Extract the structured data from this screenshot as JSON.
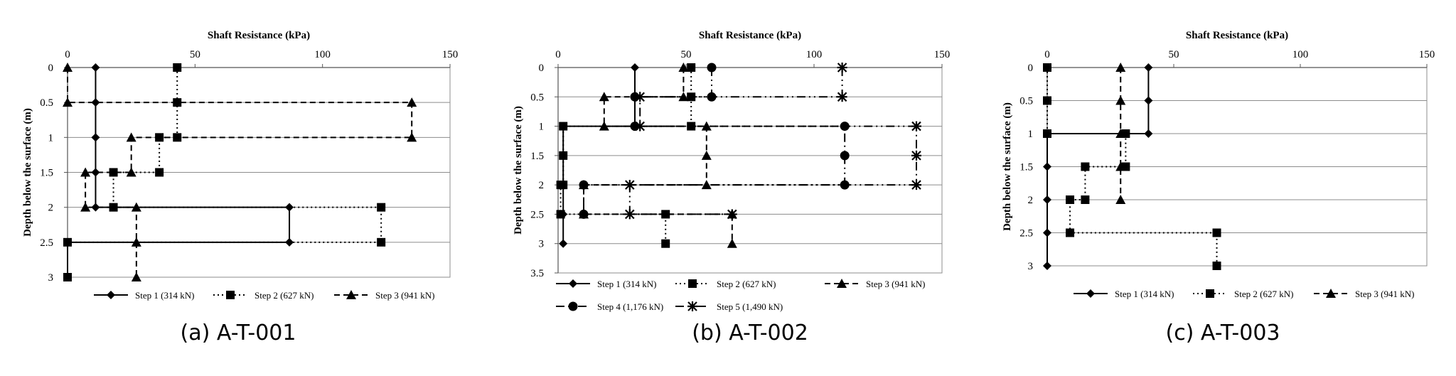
{
  "chart_data": [
    {
      "type": "line",
      "id": "a",
      "caption": "(a) A-T-001",
      "title": "",
      "xlabel": "Shaft Resistance (kPa)",
      "ylabel": "Depth below the surface (m)",
      "xlim": [
        0,
        150
      ],
      "ylim": [
        0,
        3
      ],
      "xticks": [
        0,
        50,
        100,
        150
      ],
      "yticks": [
        0,
        0.5,
        1,
        1.5,
        2,
        2.5,
        3
      ],
      "xtick_labels": [
        "0",
        "50",
        "100",
        "150"
      ],
      "ytick_labels": [
        "0",
        "0.5",
        "1",
        "1.5",
        "2",
        "2.5",
        "3"
      ],
      "legend_position": "bottom",
      "series": [
        {
          "name": "Step 1 (314 kN)",
          "marker": "diamond",
          "dash": "solid",
          "values": [
            [
              11,
              0
            ],
            [
              11,
              0.5
            ],
            [
              11,
              1
            ],
            [
              11,
              1.5
            ],
            [
              11,
              2
            ],
            [
              87,
              2
            ],
            [
              87,
              2.5
            ],
            [
              0,
              2.5
            ],
            [
              0,
              3
            ]
          ]
        },
        {
          "name": "Step 2 (627 kN)",
          "marker": "square",
          "dash": "dot",
          "values": [
            [
              43,
              0
            ],
            [
              43,
              0.5
            ],
            [
              43,
              1
            ],
            [
              36,
              1
            ],
            [
              36,
              1.5
            ],
            [
              18,
              1.5
            ],
            [
              18,
              2
            ],
            [
              123,
              2
            ],
            [
              123,
              2.5
            ],
            [
              0,
              2.5
            ],
            [
              0,
              3
            ]
          ]
        },
        {
          "name": "Step 3 (941 kN)",
          "marker": "triangle",
          "dash": "dash",
          "values": [
            [
              0,
              0
            ],
            [
              0,
              0.5
            ],
            [
              135,
              0.5
            ],
            [
              135,
              1
            ],
            [
              25,
              1
            ],
            [
              25,
              1.5
            ],
            [
              7,
              1.5
            ],
            [
              7,
              2
            ],
            [
              27,
              2
            ],
            [
              27,
              2.5
            ],
            [
              27,
              3
            ]
          ]
        }
      ]
    },
    {
      "type": "line",
      "id": "b",
      "caption": "(b) A-T-002",
      "title": "",
      "xlabel": "Shaft Resistance (kPa)",
      "ylabel": "Depth below the surface (m)",
      "xlim": [
        0,
        150
      ],
      "ylim": [
        0,
        3.5
      ],
      "xticks": [
        0,
        50,
        100,
        150
      ],
      "yticks": [
        0,
        0.5,
        1,
        1.5,
        2,
        2.5,
        3,
        3.5
      ],
      "xtick_labels": [
        "0",
        "50",
        "100",
        "150"
      ],
      "ytick_labels": [
        "0",
        "0.5",
        "1",
        "1.5",
        "2",
        "2.5",
        "3",
        "3.5"
      ],
      "legend_position": "bottom",
      "series": [
        {
          "name": "Step 1 (314 kN)",
          "marker": "diamond",
          "dash": "solid",
          "values": [
            [
              30,
              0
            ],
            [
              30,
              0.5
            ],
            [
              30,
              1
            ],
            [
              2,
              1
            ],
            [
              2,
              1.5
            ],
            [
              2,
              2
            ],
            [
              2,
              2.5
            ],
            [
              2,
              3
            ]
          ]
        },
        {
          "name": "Step 2 (627 kN)",
          "marker": "square",
          "dash": "dot",
          "values": [
            [
              52,
              0
            ],
            [
              52,
              0.5
            ],
            [
              52,
              1
            ],
            [
              2,
              1
            ],
            [
              2,
              1.5
            ],
            [
              2,
              2
            ],
            [
              1,
              2
            ],
            [
              1,
              2.5
            ],
            [
              42,
              2.5
            ],
            [
              42,
              3
            ]
          ]
        },
        {
          "name": "Step 3 (941 kN)",
          "marker": "triangle",
          "dash": "dash",
          "values": [
            [
              49,
              0
            ],
            [
              49,
              0.5
            ],
            [
              18,
              0.5
            ],
            [
              18,
              1
            ],
            [
              58,
              1
            ],
            [
              58,
              1.5
            ],
            [
              58,
              2
            ],
            [
              10,
              2
            ],
            [
              10,
              2.5
            ],
            [
              68,
              2.5
            ],
            [
              68,
              3
            ]
          ]
        },
        {
          "name": "Step 4 (1,176 kN)",
          "marker": "circle",
          "dash": "dashdotdot",
          "values": [
            [
              60,
              0
            ],
            [
              60,
              0.5
            ],
            [
              30,
              0.5
            ],
            [
              30,
              1
            ],
            [
              112,
              1
            ],
            [
              112,
              1.5
            ],
            [
              112,
              2
            ],
            [
              10,
              2
            ],
            [
              10,
              2.5
            ]
          ]
        },
        {
          "name": "Step 5 (1,490 kN)",
          "marker": "star",
          "dash": "dashdotdot",
          "values": [
            [
              111,
              0
            ],
            [
              111,
              0.5
            ],
            [
              32,
              0.5
            ],
            [
              32,
              1
            ],
            [
              140,
              1
            ],
            [
              140,
              1.5
            ],
            [
              140,
              2
            ],
            [
              28,
              2
            ],
            [
              28,
              2.5
            ],
            [
              68,
              2.5
            ]
          ]
        }
      ]
    },
    {
      "type": "line",
      "id": "c",
      "caption": "(c) A-T-003",
      "title": "",
      "xlabel": "Shaft Resistance (kPa)",
      "ylabel": "Depth below the surface (m)",
      "xlim": [
        0,
        150
      ],
      "ylim": [
        0,
        3
      ],
      "xticks": [
        0,
        50,
        100,
        150
      ],
      "yticks": [
        0,
        0.5,
        1,
        1.5,
        2,
        2.5,
        3
      ],
      "xtick_labels": [
        "0",
        "50",
        "100",
        "150"
      ],
      "ytick_labels": [
        "0",
        "0.5",
        "1",
        "1.5",
        "2",
        "2.5",
        "3"
      ],
      "legend_position": "bottom",
      "series": [
        {
          "name": "Step 1 (314 kN)",
          "marker": "diamond",
          "dash": "solid",
          "values": [
            [
              40,
              0
            ],
            [
              40,
              0.5
            ],
            [
              40,
              1
            ],
            [
              0,
              1
            ],
            [
              0,
              1.5
            ],
            [
              0,
              2
            ],
            [
              0,
              2.5
            ],
            [
              0,
              3
            ]
          ]
        },
        {
          "name": "Step 2 (627 kN)",
          "marker": "square",
          "dash": "dot",
          "values": [
            [
              0,
              0
            ],
            [
              0,
              0.5
            ],
            [
              0,
              1
            ],
            [
              31,
              1
            ],
            [
              31,
              1.5
            ],
            [
              15,
              1.5
            ],
            [
              15,
              2
            ],
            [
              9,
              2
            ],
            [
              9,
              2.5
            ],
            [
              67,
              2.5
            ],
            [
              67,
              3
            ]
          ]
        },
        {
          "name": "Step 3 (941 kN)",
          "marker": "triangle",
          "dash": "dash",
          "values": [
            [
              29,
              0
            ],
            [
              29,
              0.5
            ],
            [
              29,
              1
            ],
            [
              29,
              1.5
            ],
            [
              29,
              2
            ]
          ]
        }
      ]
    }
  ]
}
